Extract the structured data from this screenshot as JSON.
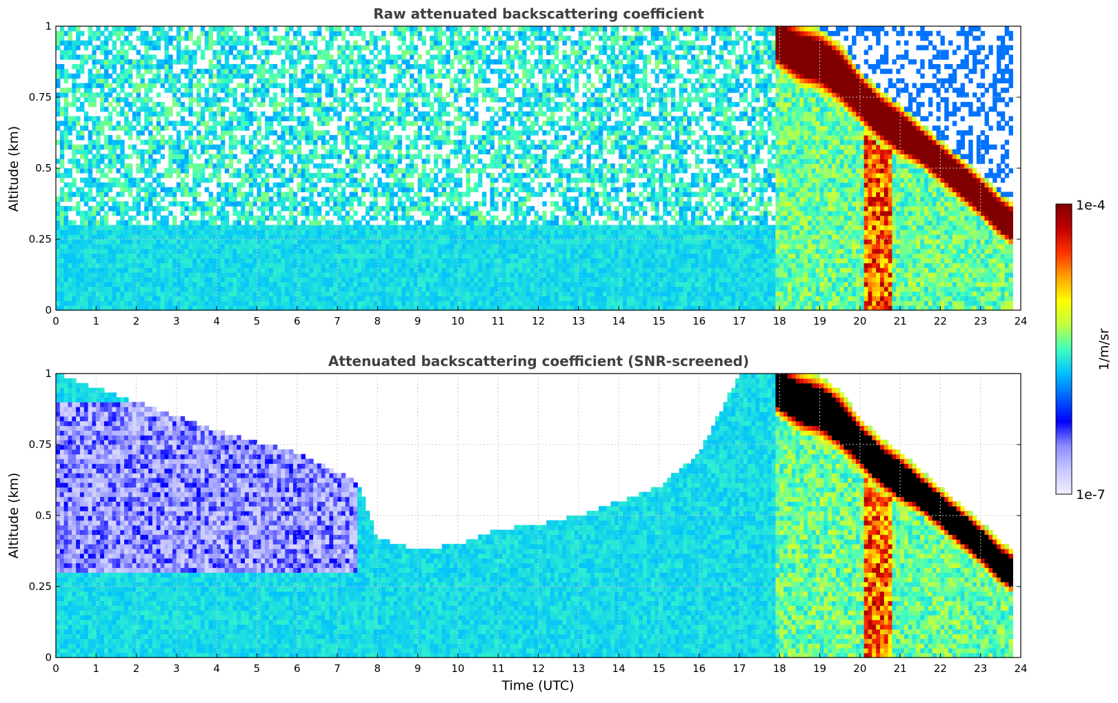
{
  "chart_data": [
    {
      "type": "heatmap",
      "title": "Raw attenuated backscattering coefficient",
      "xlabel": "",
      "ylabel": "Altitude (km)",
      "xlim": [
        0,
        24
      ],
      "ylim": [
        0,
        1
      ],
      "x_ticks": [
        "0",
        "1",
        "2",
        "3",
        "4",
        "5",
        "6",
        "7",
        "8",
        "9",
        "10",
        "11",
        "12",
        "13",
        "14",
        "15",
        "16",
        "17",
        "18",
        "19",
        "20",
        "21",
        "22",
        "23",
        "24"
      ],
      "y_ticks": [
        "0",
        "0.25",
        "0.5",
        "0.75",
        "1"
      ],
      "grid": true,
      "data_end_time": 23.8,
      "layers": [
        {
          "name": "background",
          "t_range": [
            0,
            23.8
          ],
          "level": 0.45
        },
        {
          "name": "noise",
          "t_range": [
            0,
            17.9
          ],
          "alt_range": [
            0.3,
            1.0
          ],
          "level": 0.3
        }
      ],
      "cloud_band": {
        "t": [
          17.9,
          18.5,
          19.0,
          19.5,
          20.0,
          20.5,
          21.0,
          21.5,
          22.0,
          22.5,
          23.0,
          23.5,
          23.8
        ],
        "center_alt": [
          0.95,
          0.9,
          0.88,
          0.83,
          0.75,
          0.68,
          0.63,
          0.58,
          0.52,
          0.46,
          0.4,
          0.33,
          0.3
        ],
        "half_thickness": [
          0.06,
          0.07,
          0.07,
          0.07,
          0.06,
          0.06,
          0.06,
          0.05,
          0.05,
          0.05,
          0.05,
          0.05,
          0.05
        ],
        "level": 0.98
      },
      "precipitation_streaks": {
        "t_range": [
          20.1,
          20.8
        ],
        "alt_range": [
          0,
          0.65
        ],
        "level": 0.8
      }
    },
    {
      "type": "heatmap",
      "title": "Attenuated backscattering coefficient (SNR-screened)",
      "xlabel": "Time (UTC)",
      "ylabel": "Altitude (km)",
      "xlim": [
        0,
        24
      ],
      "ylim": [
        0,
        1
      ],
      "x_ticks": [
        "0",
        "1",
        "2",
        "3",
        "4",
        "5",
        "6",
        "7",
        "8",
        "9",
        "10",
        "11",
        "12",
        "13",
        "14",
        "15",
        "16",
        "17",
        "18",
        "19",
        "20",
        "21",
        "22",
        "23",
        "24"
      ],
      "y_ticks": [
        "0",
        "0.25",
        "0.5",
        "0.75",
        "1"
      ],
      "grid": true,
      "data_end_time": 23.8,
      "screened_top": {
        "t": [
          0,
          2,
          4,
          6,
          7.5,
          8,
          9,
          10,
          11,
          12,
          13,
          14,
          15,
          16,
          17,
          17.9
        ],
        "alt": [
          1.0,
          0.9,
          0.8,
          0.72,
          0.62,
          0.42,
          0.38,
          0.4,
          0.45,
          0.47,
          0.5,
          0.55,
          0.6,
          0.72,
          1.0,
          1.0
        ]
      },
      "low_signal_region": {
        "t_range": [
          0,
          7.5
        ],
        "alt_range": [
          0.3,
          0.9
        ],
        "level": 0.05
      },
      "cloud_band": {
        "t": [
          17.9,
          18.5,
          19.0,
          19.5,
          20.0,
          20.5,
          21.0,
          21.5,
          22.0,
          22.5,
          23.0,
          23.5,
          23.8
        ],
        "center_alt": [
          0.95,
          0.9,
          0.88,
          0.83,
          0.75,
          0.68,
          0.63,
          0.58,
          0.52,
          0.46,
          0.4,
          0.33,
          0.3
        ],
        "half_thickness": [
          0.06,
          0.07,
          0.07,
          0.07,
          0.06,
          0.06,
          0.06,
          0.05,
          0.05,
          0.05,
          0.05,
          0.05,
          0.05
        ],
        "saturated_color": "#000000"
      },
      "precipitation_streaks": {
        "t_range": [
          20.1,
          20.8
        ],
        "alt_range": [
          0,
          0.65
        ],
        "level": 0.8
      }
    }
  ],
  "colorbar": {
    "max_label": "1e-4",
    "min_label": "1e-7",
    "unit_label": "1/m/sr",
    "colormap": "jet",
    "colors": [
      "#f0f0ff",
      "#c8c8ff",
      "#8c8cff",
      "#0000ff",
      "#0060ff",
      "#00c0ff",
      "#40ffbf",
      "#c0ff40",
      "#ffff00",
      "#ffa000",
      "#ff3000",
      "#c00000",
      "#800000"
    ],
    "scale": "log"
  }
}
